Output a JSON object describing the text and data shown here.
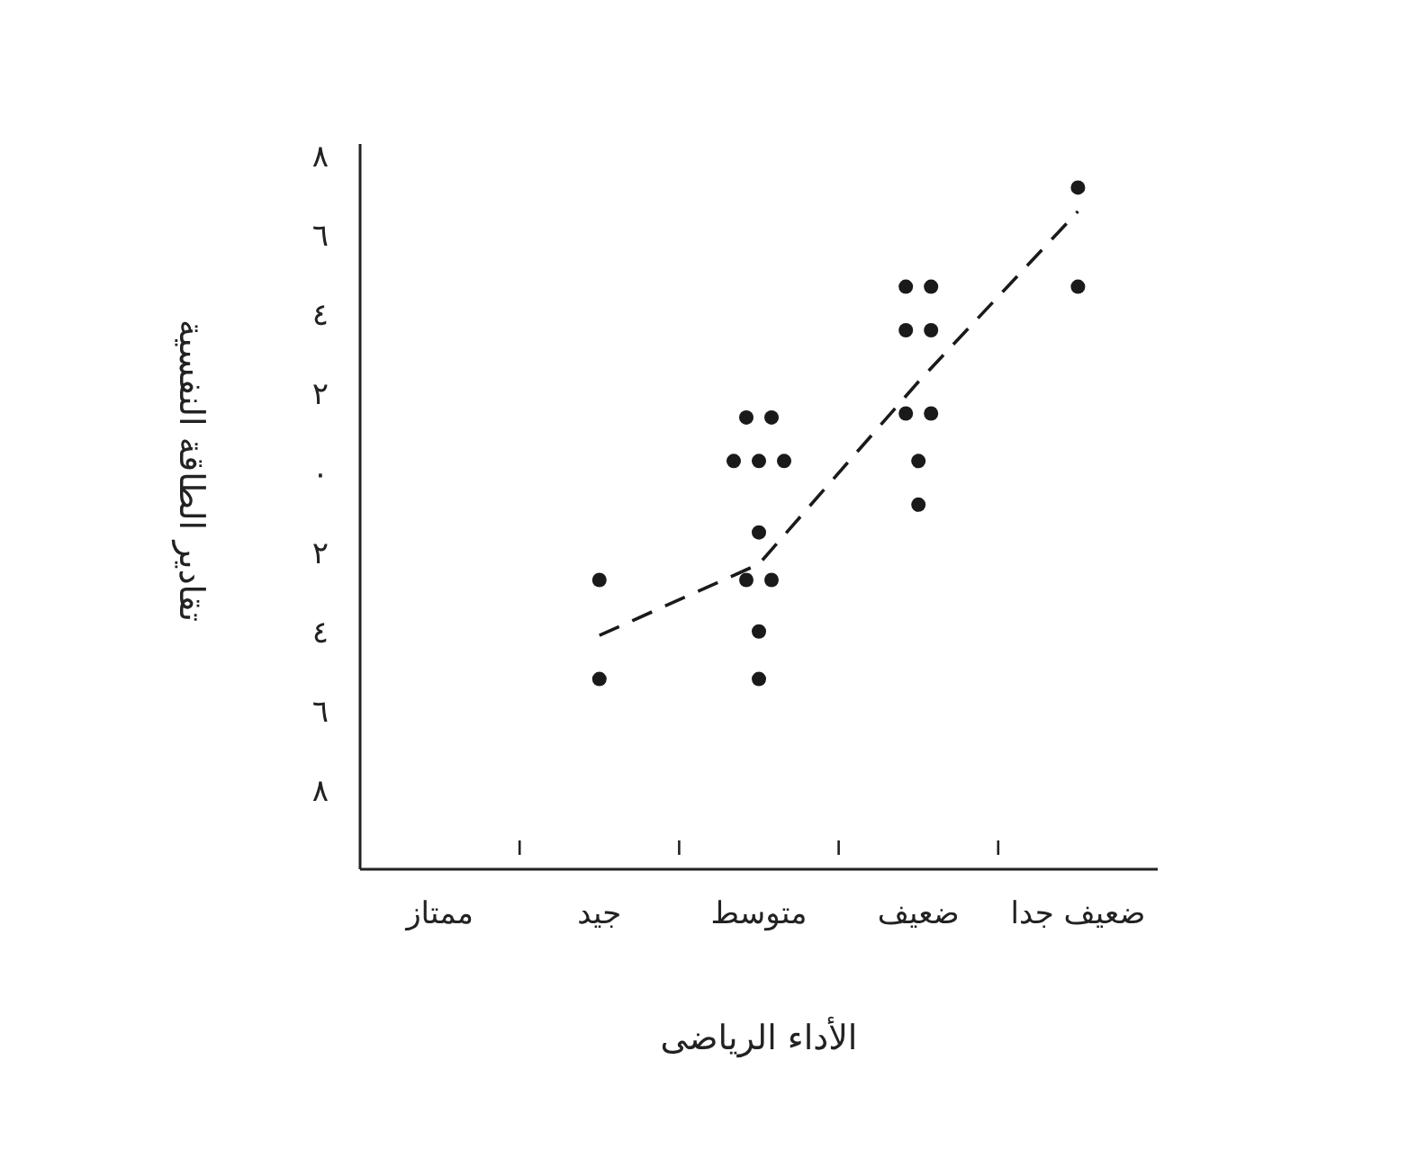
{
  "chart_data": {
    "type": "scatter",
    "xlabel": "الأداء الرياضى",
    "ylabel": "تقادير الطاقة النفسية",
    "categories": [
      "ممتاز",
      "جيد",
      "متوسط",
      "ضعيف",
      "ضعيف جدا"
    ],
    "ylim": [
      -10,
      8.3
    ],
    "yticks": [
      {
        "value": 8,
        "label": "٨"
      },
      {
        "value": 6,
        "label": "٦"
      },
      {
        "value": 4,
        "label": "٤"
      },
      {
        "value": 2,
        "label": "٢"
      },
      {
        "value": 0,
        "label": "٠"
      },
      {
        "value": -2,
        "label": "٢"
      },
      {
        "value": -4,
        "label": "٤"
      },
      {
        "value": -6,
        "label": "٦"
      },
      {
        "value": -8,
        "label": "٨"
      }
    ],
    "grid": false,
    "series": [
      {
        "color": "#1a1a1a",
        "marker": "circle",
        "x": [
          "جيد",
          "جيد",
          "متوسط",
          "متوسط",
          "متوسط",
          "متوسط",
          "متوسط",
          "متوسط",
          "متوسط",
          "متوسط",
          "متوسط",
          "متوسط",
          "ضعيف",
          "ضعيف",
          "ضعيف",
          "ضعيف",
          "ضعيف",
          "ضعيف",
          "ضعيف",
          "ضعيف",
          "ضعيف جدا",
          "ضعيف جدا"
        ],
        "values": [
          -2.7,
          -5.2,
          1.4,
          1.4,
          0.3,
          0.3,
          0.3,
          -1.5,
          -2.7,
          -2.7,
          -4.0,
          -5.2,
          4.7,
          4.7,
          3.6,
          3.6,
          1.5,
          1.5,
          0.3,
          -0.8,
          4.7,
          7.2
        ]
      },
      {
        "type": "line",
        "color": "#1a1a1a",
        "marker": "none",
        "line_style": "dashed",
        "x": [
          "جيد",
          "متوسط",
          "ضعيف",
          "ضعيف جدا"
        ],
        "values": [
          -4.1,
          -2.3,
          2.3,
          6.6
        ]
      }
    ]
  }
}
